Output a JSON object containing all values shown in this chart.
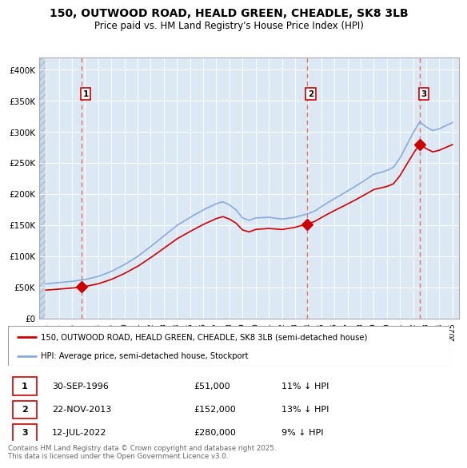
{
  "title": "150, OUTWOOD ROAD, HEALD GREEN, CHEADLE, SK8 3LB",
  "subtitle": "Price paid vs. HM Land Registry's House Price Index (HPI)",
  "background_plot": "#dce9f5",
  "grid_color": "#ffffff",
  "sale_dates_num": [
    1996.75,
    2013.9,
    2022.53
  ],
  "sale_prices": [
    51000,
    152000,
    280000
  ],
  "sale_labels": [
    "1",
    "2",
    "3"
  ],
  "legend_house": "150, OUTWOOD ROAD, HEALD GREEN, CHEADLE, SK8 3LB (semi-detached house)",
  "legend_hpi": "HPI: Average price, semi-detached house, Stockport",
  "table_entries": [
    {
      "num": "1",
      "date": "30-SEP-1996",
      "price": "£51,000",
      "note": "11% ↓ HPI"
    },
    {
      "num": "2",
      "date": "22-NOV-2013",
      "price": "£152,000",
      "note": "13% ↓ HPI"
    },
    {
      "num": "3",
      "date": "12-JUL-2022",
      "price": "£280,000",
      "note": "9% ↓ HPI"
    }
  ],
  "footer": "Contains HM Land Registry data © Crown copyright and database right 2025.\nThis data is licensed under the Open Government Licence v3.0.",
  "ylim": [
    0,
    420000
  ],
  "xlim_start": 1993.5,
  "xlim_end": 2025.5,
  "yticks": [
    0,
    50000,
    100000,
    150000,
    200000,
    250000,
    300000,
    350000,
    400000
  ],
  "ytick_labels": [
    "£0",
    "£50K",
    "£100K",
    "£150K",
    "£200K",
    "£250K",
    "£300K",
    "£350K",
    "£400K"
  ],
  "xticks": [
    1994,
    1995,
    1996,
    1997,
    1998,
    1999,
    2000,
    2001,
    2002,
    2003,
    2004,
    2005,
    2006,
    2007,
    2008,
    2009,
    2010,
    2011,
    2012,
    2013,
    2014,
    2015,
    2016,
    2017,
    2018,
    2019,
    2020,
    2021,
    2022,
    2023,
    2024,
    2025
  ],
  "line_color_house": "#cc0000",
  "line_color_hpi": "#88aadd",
  "dashed_line_color": "#ee6666",
  "marker_color": "#cc0000",
  "marker_size": 7
}
